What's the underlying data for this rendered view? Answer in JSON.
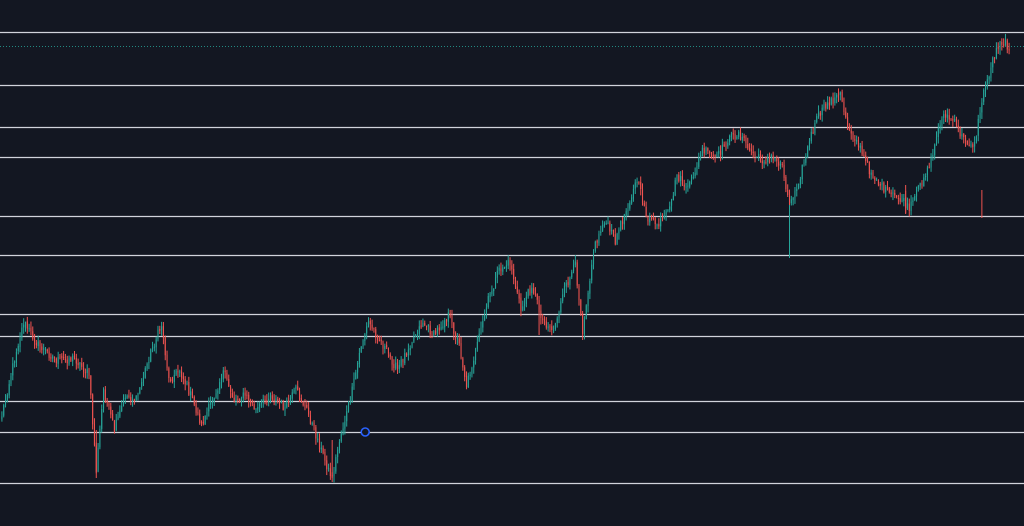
{
  "theme": {
    "background": "#131722",
    "bull_color": "#26a69a",
    "bear_color": "#ef5350",
    "level_line_color": "#d1d4dc",
    "handle_color": "#2962ff"
  },
  "chart_data": {
    "type": "candlestick",
    "title": "",
    "xlabel": "",
    "ylabel": "",
    "grid": false,
    "legend": "none",
    "y_range": [
      480,
      30
    ],
    "horizontal_levels": [
      32,
      85,
      127,
      157,
      216,
      255,
      314,
      336,
      401,
      432,
      483
    ],
    "last_price_level": 46,
    "drawing_handle": {
      "bar_index": 198,
      "price": 432
    },
    "anchors": [
      [
        0,
        415
      ],
      [
        8,
        350
      ],
      [
        12,
        322
      ],
      [
        20,
        345
      ],
      [
        30,
        360
      ],
      [
        40,
        358
      ],
      [
        48,
        375
      ],
      [
        52,
        470
      ],
      [
        56,
        390
      ],
      [
        62,
        430
      ],
      [
        68,
        395
      ],
      [
        74,
        400
      ],
      [
        82,
        352
      ],
      [
        88,
        325
      ],
      [
        92,
        380
      ],
      [
        98,
        370
      ],
      [
        104,
        395
      ],
      [
        110,
        425
      ],
      [
        116,
        400
      ],
      [
        122,
        372
      ],
      [
        128,
        400
      ],
      [
        134,
        395
      ],
      [
        140,
        410
      ],
      [
        148,
        395
      ],
      [
        156,
        408
      ],
      [
        162,
        390
      ],
      [
        168,
        410
      ],
      [
        174,
        440
      ],
      [
        180,
        470
      ],
      [
        182,
        478
      ],
      [
        186,
        440
      ],
      [
        192,
        400
      ],
      [
        198,
        345
      ],
      [
        202,
        322
      ],
      [
        210,
        345
      ],
      [
        218,
        370
      ],
      [
        226,
        340
      ],
      [
        232,
        322
      ],
      [
        238,
        335
      ],
      [
        246,
        315
      ],
      [
        252,
        345
      ],
      [
        256,
        385
      ],
      [
        262,
        345
      ],
      [
        268,
        300
      ],
      [
        274,
        270
      ],
      [
        280,
        262
      ],
      [
        286,
        310
      ],
      [
        292,
        285
      ],
      [
        298,
        320
      ],
      [
        304,
        330
      ],
      [
        310,
        290
      ],
      [
        316,
        265
      ],
      [
        320,
        330
      ],
      [
        326,
        250
      ],
      [
        332,
        220
      ],
      [
        338,
        240
      ],
      [
        344,
        210
      ],
      [
        350,
        180
      ],
      [
        356,
        220
      ],
      [
        362,
        225
      ],
      [
        368,
        210
      ],
      [
        372,
        175
      ],
      [
        378,
        190
      ],
      [
        386,
        150
      ],
      [
        394,
        158
      ],
      [
        400,
        140
      ],
      [
        406,
        133
      ],
      [
        412,
        150
      ],
      [
        418,
        160
      ],
      [
        424,
        158
      ],
      [
        430,
        165
      ],
      [
        434,
        205
      ],
      [
        440,
        175
      ],
      [
        446,
        135
      ],
      [
        450,
        115
      ],
      [
        456,
        102
      ],
      [
        462,
        95
      ],
      [
        466,
        125
      ],
      [
        472,
        145
      ],
      [
        478,
        170
      ],
      [
        484,
        185
      ],
      [
        490,
        195
      ],
      [
        496,
        200
      ],
      [
        500,
        210
      ],
      [
        506,
        185
      ],
      [
        512,
        160
      ],
      [
        518,
        115
      ],
      [
        524,
        120
      ],
      [
        530,
        140
      ],
      [
        536,
        145
      ],
      [
        540,
        100
      ],
      [
        546,
        60
      ],
      [
        550,
        40
      ],
      [
        554,
        46
      ]
    ],
    "n_bars": 556
  }
}
